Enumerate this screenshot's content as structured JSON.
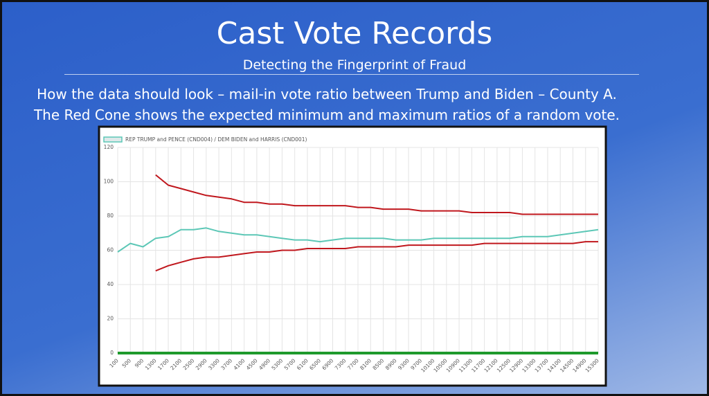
{
  "slide": {
    "title": "Cast Vote Records",
    "subtitle": "Detecting the Fingerprint of Fraud",
    "lines": [
      "How the data should look – mail-in vote ratio between Trump and Biden – County A.",
      "The Red Cone shows the expected minimum and maximum ratios of a random vote."
    ]
  },
  "chart_data": {
    "type": "line",
    "x": [
      100,
      500,
      900,
      1300,
      1700,
      2100,
      2500,
      2900,
      3300,
      3700,
      4100,
      4500,
      4900,
      5300,
      5700,
      6100,
      6500,
      6900,
      7300,
      7700,
      8100,
      8500,
      8900,
      9300,
      9700,
      10100,
      10500,
      10900,
      11300,
      11700,
      12100,
      12500,
      12900,
      13300,
      13700,
      14100,
      14500,
      14900,
      15300
    ],
    "series": [
      {
        "name": "REP TRUMP and PENCE (CND004) / DEM BIDEN and HARRIS (CND001)",
        "color": "#5cc7b6",
        "values": [
          59,
          64,
          62,
          67,
          68,
          72,
          72,
          73,
          71,
          70,
          69,
          69,
          68,
          67,
          66,
          66,
          65,
          66,
          67,
          67,
          67,
          67,
          66,
          66,
          66,
          67,
          67,
          67,
          67,
          67,
          67,
          67,
          68,
          68,
          68,
          69,
          70,
          71,
          72
        ]
      },
      {
        "color": "#c0171d",
        "values": [
          null,
          null,
          null,
          104,
          98,
          96,
          94,
          92,
          91,
          90,
          88,
          88,
          87,
          87,
          86,
          86,
          86,
          86,
          86,
          85,
          85,
          84,
          84,
          84,
          83,
          83,
          83,
          83,
          82,
          82,
          82,
          82,
          81,
          81,
          81,
          81,
          81,
          81,
          81
        ]
      },
      {
        "color": "#c0171d",
        "values": [
          null,
          null,
          null,
          48,
          51,
          53,
          55,
          56,
          56,
          57,
          58,
          59,
          59,
          60,
          60,
          61,
          61,
          61,
          61,
          62,
          62,
          62,
          62,
          63,
          63,
          63,
          63,
          63,
          63,
          64,
          64,
          64,
          64,
          64,
          64,
          64,
          64,
          65,
          65
        ]
      },
      {
        "color": "#1e9a2c",
        "values": [
          0,
          0,
          0,
          0,
          0,
          0,
          0,
          0,
          0,
          0,
          0,
          0,
          0,
          0,
          0,
          0,
          0,
          0,
          0,
          0,
          0,
          0,
          0,
          0,
          0,
          0,
          0,
          0,
          0,
          0,
          0,
          0,
          0,
          0,
          0,
          0,
          0,
          0,
          0
        ]
      }
    ],
    "xlim": [
      100,
      15300
    ],
    "xticks": [
      100,
      500,
      900,
      1300,
      1700,
      2100,
      2500,
      2900,
      3300,
      3700,
      4100,
      4500,
      4900,
      5300,
      5700,
      6100,
      6500,
      6900,
      7300,
      7700,
      8100,
      8500,
      8900,
      9300,
      9700,
      10100,
      10500,
      10900,
      11300,
      11700,
      12100,
      12500,
      12900,
      13300,
      13700,
      14100,
      14500,
      14900,
      15300
    ],
    "ylim": [
      0,
      120
    ],
    "yticks": [
      0,
      20,
      40,
      60,
      80,
      100,
      120
    ],
    "grid": true
  }
}
